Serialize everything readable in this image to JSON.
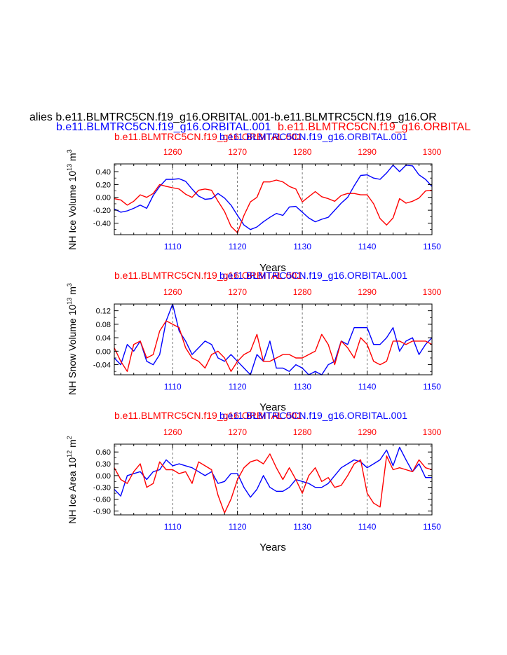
{
  "header": {
    "main_title": "alies b.e11.BLMTRC5CN.f19_g16.ORBITAL.001-b.e11.BLMTRC5CN.f19_g16.OR",
    "blue_run": "b.e11.BLMTRC5CN.f19_g16.ORBITAL.001",
    "red_run": "b.e11.BLMTRC5CN.f19_g16.ORBITAL"
  },
  "colors": {
    "blue": "#0000ff",
    "red": "#ff0000",
    "axis": "#000000",
    "grid": "#555555"
  },
  "chart_data": [
    {
      "type": "line",
      "name": "ice-volume",
      "ylabel": "NH Ice Volume",
      "ylabel_unit_base": "10",
      "ylabel_unit_exp": "13",
      "ylabel_unit_tail": "m",
      "ylabel_unit_tail_exp": "3",
      "xlabel": "Years",
      "top_title_red": "b.e11.BLMTRC5CN.f19_g16.ORBITAL.001",
      "top_title_blue": "b.e11.BLMTRC5CN.f19_g16.ORBITAL.001",
      "ylim": [
        -0.58,
        0.52
      ],
      "yticks": [
        -0.4,
        -0.2,
        0.0,
        0.2,
        0.4
      ],
      "ytick_labels": [
        "-0.40",
        "-0.20",
        "0.00",
        "0.20",
        "0.40"
      ],
      "bottom_xlim": [
        1101,
        1150
      ],
      "bottom_xticks": [
        1110,
        1120,
        1130,
        1140,
        1150
      ],
      "top_xlim": [
        1251,
        1300
      ],
      "top_xticks": [
        1260,
        1270,
        1280,
        1290,
        1300
      ],
      "series": [
        {
          "name": "blue",
          "color": "#0000ff",
          "x": [
            1101,
            1102,
            1103,
            1104,
            1105,
            1106,
            1107,
            1108,
            1109,
            1110,
            1111,
            1112,
            1113,
            1114,
            1115,
            1116,
            1117,
            1118,
            1119,
            1120,
            1121,
            1122,
            1123,
            1124,
            1125,
            1126,
            1127,
            1128,
            1129,
            1130,
            1131,
            1132,
            1133,
            1134,
            1135,
            1136,
            1137,
            1138,
            1139,
            1140,
            1141,
            1142,
            1143,
            1144,
            1145,
            1146,
            1147,
            1148,
            1149,
            1150
          ],
          "values": [
            -0.18,
            -0.23,
            -0.21,
            -0.17,
            -0.12,
            -0.17,
            0.03,
            0.17,
            0.28,
            0.28,
            0.29,
            0.25,
            0.13,
            0.02,
            -0.03,
            -0.02,
            0.06,
            -0.01,
            -0.12,
            -0.28,
            -0.43,
            -0.5,
            -0.46,
            -0.38,
            -0.31,
            -0.25,
            -0.28,
            -0.15,
            -0.14,
            -0.23,
            -0.32,
            -0.38,
            -0.34,
            -0.31,
            -0.2,
            -0.09,
            0.0,
            0.18,
            0.34,
            0.35,
            0.3,
            0.28,
            0.38,
            0.5,
            0.4,
            0.5,
            0.49,
            0.35,
            0.28,
            0.17
          ]
        },
        {
          "name": "red",
          "color": "#ff0000",
          "x": [
            1251,
            1252,
            1253,
            1254,
            1255,
            1256,
            1257,
            1258,
            1259,
            1260,
            1261,
            1262,
            1263,
            1264,
            1265,
            1266,
            1267,
            1268,
            1269,
            1270,
            1271,
            1272,
            1273,
            1274,
            1275,
            1276,
            1277,
            1278,
            1279,
            1280,
            1281,
            1282,
            1283,
            1284,
            1285,
            1286,
            1287,
            1288,
            1289,
            1290,
            1291,
            1292,
            1293,
            1294,
            1295,
            1296,
            1297,
            1298,
            1299,
            1300
          ],
          "values": [
            -0.02,
            -0.04,
            -0.12,
            -0.06,
            0.04,
            0.0,
            0.06,
            0.2,
            0.17,
            0.15,
            0.13,
            0.05,
            0.0,
            0.11,
            0.13,
            0.11,
            -0.06,
            -0.22,
            -0.45,
            -0.55,
            -0.28,
            -0.07,
            0.0,
            0.24,
            0.24,
            0.27,
            0.24,
            0.17,
            0.13,
            -0.07,
            0.01,
            0.09,
            0.01,
            -0.02,
            -0.06,
            0.03,
            0.06,
            0.06,
            0.04,
            0.04,
            -0.1,
            -0.33,
            -0.43,
            -0.32,
            -0.02,
            -0.09,
            -0.06,
            -0.01,
            0.1,
            0.11
          ]
        }
      ]
    },
    {
      "type": "line",
      "name": "snow-volume",
      "ylabel": "NH Snow Volume",
      "ylabel_unit_base": "10",
      "ylabel_unit_exp": "13",
      "ylabel_unit_tail": "m",
      "ylabel_unit_tail_exp": "3",
      "xlabel": "Years",
      "top_title_red": "b.e11.BLMTRC5CN.f19_g16.ORBITAL.001",
      "top_title_blue": "b.e11.BLMTRC5CN.f19_g16.ORBITAL.001",
      "ylim": [
        -0.07,
        0.14
      ],
      "yticks": [
        -0.04,
        0.0,
        0.04,
        0.08,
        0.12
      ],
      "ytick_labels": [
        "-0.04",
        "0.00",
        "0.04",
        "0.08",
        "0.12"
      ],
      "bottom_xlim": [
        1101,
        1150
      ],
      "bottom_xticks": [
        1110,
        1120,
        1130,
        1140,
        1150
      ],
      "top_xlim": [
        1251,
        1300
      ],
      "top_xticks": [
        1260,
        1270,
        1280,
        1290,
        1300
      ],
      "series": [
        {
          "name": "blue",
          "color": "#0000ff",
          "x": [
            1101,
            1102,
            1103,
            1104,
            1105,
            1106,
            1107,
            1108,
            1109,
            1110,
            1111,
            1112,
            1113,
            1114,
            1115,
            1116,
            1117,
            1118,
            1119,
            1120,
            1121,
            1122,
            1123,
            1124,
            1125,
            1126,
            1127,
            1128,
            1129,
            1130,
            1131,
            1132,
            1133,
            1134,
            1135,
            1136,
            1137,
            1138,
            1139,
            1140,
            1141,
            1142,
            1143,
            1144,
            1145,
            1146,
            1147,
            1148,
            1149,
            1150
          ],
          "values": [
            -0.02,
            -0.04,
            0.02,
            0.0,
            0.03,
            -0.03,
            -0.04,
            -0.01,
            0.09,
            0.14,
            0.06,
            0.03,
            -0.01,
            0.01,
            0.03,
            0.02,
            -0.02,
            -0.03,
            -0.01,
            -0.03,
            -0.05,
            -0.07,
            -0.01,
            -0.03,
            0.03,
            -0.05,
            -0.05,
            -0.06,
            -0.04,
            -0.05,
            -0.07,
            -0.06,
            -0.07,
            -0.04,
            -0.03,
            0.03,
            0.02,
            0.07,
            0.07,
            0.07,
            0.02,
            0.02,
            0.04,
            0.07,
            0.0,
            0.03,
            0.04,
            -0.01,
            0.02,
            0.04
          ]
        },
        {
          "name": "red",
          "color": "#ff0000",
          "x": [
            1251,
            1252,
            1253,
            1254,
            1255,
            1256,
            1257,
            1258,
            1259,
            1260,
            1261,
            1262,
            1263,
            1264,
            1265,
            1266,
            1267,
            1268,
            1269,
            1270,
            1271,
            1272,
            1273,
            1274,
            1275,
            1276,
            1277,
            1278,
            1279,
            1280,
            1281,
            1282,
            1283,
            1284,
            1285,
            1286,
            1287,
            1288,
            1289,
            1290,
            1291,
            1292,
            1293,
            1294,
            1295,
            1296,
            1297,
            1298,
            1299,
            1300
          ],
          "values": [
            0.01,
            -0.03,
            -0.06,
            0.02,
            0.03,
            -0.02,
            -0.01,
            0.06,
            0.09,
            0.08,
            0.07,
            0.01,
            -0.02,
            -0.03,
            -0.05,
            -0.01,
            0.0,
            -0.02,
            -0.06,
            -0.03,
            -0.01,
            0.0,
            0.05,
            -0.03,
            -0.03,
            -0.02,
            -0.01,
            -0.01,
            -0.02,
            -0.02,
            -0.01,
            0.0,
            0.05,
            0.02,
            -0.04,
            0.03,
            0.01,
            -0.02,
            0.04,
            0.02,
            -0.03,
            -0.04,
            -0.03,
            0.03,
            0.03,
            0.02,
            0.03,
            0.03,
            0.03,
            0.02
          ]
        }
      ]
    },
    {
      "type": "line",
      "name": "ice-area",
      "ylabel": "NH Ice Area",
      "ylabel_unit_base": "10",
      "ylabel_unit_exp": "12",
      "ylabel_unit_tail": "m",
      "ylabel_unit_tail_exp": "2",
      "xlabel": "Years",
      "top_title_red": "b.e11.BLMTRC5CN.f19_g16.ORBITAL.001",
      "top_title_blue": "b.e11.BLMTRC5CN.f19_g16.ORBITAL.001",
      "ylim": [
        -1.0,
        0.8
      ],
      "yticks": [
        -0.9,
        -0.6,
        -0.3,
        0.0,
        0.3,
        0.6
      ],
      "ytick_labels": [
        "-0.90",
        "-0.60",
        "-0.30",
        "0.00",
        "0.30",
        "0.60"
      ],
      "bottom_xlim": [
        1101,
        1150
      ],
      "bottom_xticks": [
        1110,
        1120,
        1130,
        1140,
        1150
      ],
      "top_xlim": [
        1251,
        1300
      ],
      "top_xticks": [
        1260,
        1270,
        1280,
        1290,
        1300
      ],
      "series": [
        {
          "name": "blue",
          "color": "#0000ff",
          "x": [
            1101,
            1102,
            1103,
            1104,
            1105,
            1106,
            1107,
            1108,
            1109,
            1110,
            1111,
            1112,
            1113,
            1114,
            1115,
            1116,
            1117,
            1118,
            1119,
            1120,
            1121,
            1122,
            1123,
            1124,
            1125,
            1126,
            1127,
            1128,
            1129,
            1130,
            1131,
            1132,
            1133,
            1134,
            1135,
            1136,
            1137,
            1138,
            1139,
            1140,
            1141,
            1142,
            1143,
            1144,
            1145,
            1146,
            1147,
            1148,
            1149,
            1150
          ],
          "values": [
            -0.35,
            -0.52,
            0.0,
            0.05,
            0.1,
            -0.1,
            0.1,
            0.15,
            0.4,
            0.25,
            0.3,
            0.25,
            0.2,
            0.1,
            0.0,
            0.1,
            -0.2,
            -0.15,
            0.05,
            0.05,
            -0.3,
            -0.55,
            -0.35,
            0.0,
            -0.3,
            -0.4,
            -0.4,
            -0.3,
            -0.1,
            -0.15,
            -0.2,
            -0.3,
            -0.3,
            -0.2,
            0.0,
            0.2,
            0.3,
            0.4,
            0.35,
            0.2,
            0.3,
            0.4,
            0.65,
            0.25,
            0.72,
            0.4,
            0.1,
            0.3,
            -0.05,
            -0.05
          ]
        },
        {
          "name": "red",
          "color": "#ff0000",
          "x": [
            1251,
            1252,
            1253,
            1254,
            1255,
            1256,
            1257,
            1258,
            1259,
            1260,
            1261,
            1262,
            1263,
            1264,
            1265,
            1266,
            1267,
            1268,
            1269,
            1270,
            1271,
            1272,
            1273,
            1274,
            1275,
            1276,
            1277,
            1278,
            1279,
            1280,
            1281,
            1282,
            1283,
            1284,
            1285,
            1286,
            1287,
            1288,
            1289,
            1290,
            1291,
            1292,
            1293,
            1294,
            1295,
            1296,
            1297,
            1298,
            1299,
            1300
          ],
          "values": [
            0.2,
            -0.1,
            -0.2,
            0.1,
            0.3,
            -0.3,
            -0.2,
            0.35,
            0.15,
            0.15,
            0.05,
            0.1,
            -0.2,
            0.35,
            0.25,
            0.15,
            -0.5,
            -0.95,
            -0.6,
            -0.1,
            0.2,
            0.35,
            0.4,
            0.3,
            0.55,
            0.2,
            -0.1,
            0.2,
            -0.1,
            -0.45,
            0.0,
            0.2,
            -0.15,
            -0.05,
            -0.3,
            -0.25,
            0.0,
            0.3,
            0.4,
            -0.45,
            -0.7,
            -0.8,
            0.5,
            0.15,
            0.2,
            0.15,
            0.1,
            0.4,
            0.2,
            0.15
          ]
        }
      ]
    }
  ]
}
